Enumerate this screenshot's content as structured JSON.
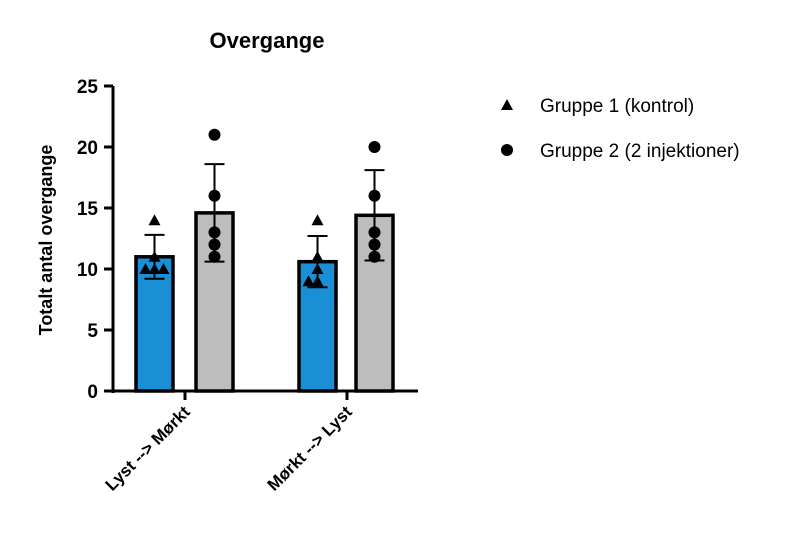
{
  "chart_data": {
    "type": "bar",
    "title": "Overgange",
    "ylabel": "Totalt antal overgange",
    "xlabel": "",
    "ylim": [
      0,
      25
    ],
    "yticks": [
      0,
      5,
      10,
      15,
      20,
      25
    ],
    "categories": [
      "Lyst --> Mørkt",
      "Mørkt --> Lyst"
    ],
    "legend_position": "right",
    "series": [
      {
        "name": "Gruppe 1 (kontrol)",
        "marker": "triangle",
        "color": "#1a8fd6",
        "values": [
          11.0,
          10.6
        ],
        "sd": [
          1.8,
          2.1
        ],
        "points": [
          [
            14,
            11,
            10,
            10,
            10
          ],
          [
            14,
            11,
            10,
            9,
            9
          ]
        ]
      },
      {
        "name": "Gruppe 2 (2 injektioner)",
        "marker": "circle",
        "color": "#bdbdbd",
        "values": [
          14.6,
          14.4
        ],
        "sd": [
          4.0,
          3.7
        ],
        "points": [
          [
            21,
            16,
            13,
            12,
            11
          ],
          [
            20,
            16,
            13,
            12,
            11
          ]
        ]
      }
    ]
  }
}
